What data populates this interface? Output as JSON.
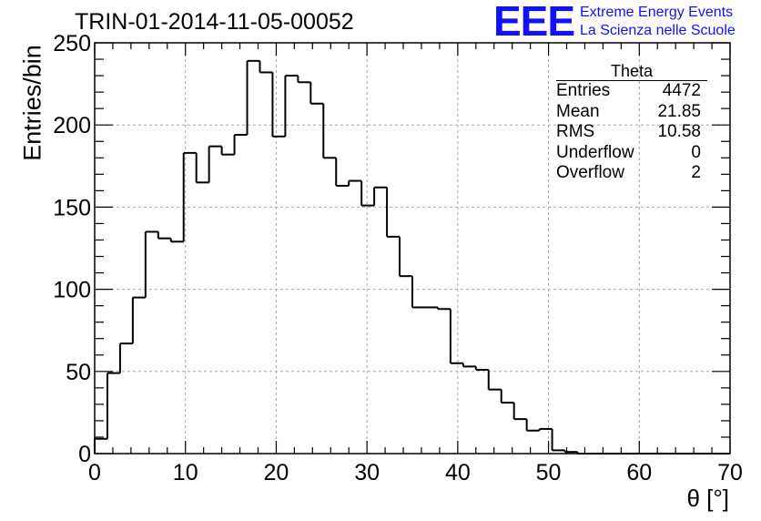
{
  "header": {
    "title": "TRIN-01-2014-11-05-00052",
    "logo_letters": "EEE",
    "logo_line1": "Extreme Energy Events",
    "logo_line2": "La Scienza nelle Scuole"
  },
  "stats": {
    "title": "Theta",
    "rows": [
      {
        "label": "Entries",
        "value": "4472"
      },
      {
        "label": "Mean",
        "value": "21.85"
      },
      {
        "label": "RMS",
        "value": "10.58"
      },
      {
        "label": "Underflow",
        "value": "0"
      },
      {
        "label": "Overflow",
        "value": "2"
      }
    ]
  },
  "colors": {
    "line": "#000000",
    "grid": "#a6a6a6",
    "logo": "#1010ff"
  },
  "chart_data": {
    "type": "histogram",
    "title": "TRIN-01-2014-11-05-00052",
    "xlabel": "θ [°]",
    "ylabel": "Entries/bin",
    "xlim": [
      0,
      70
    ],
    "ylim": [
      0,
      250
    ],
    "xticks": [
      0,
      10,
      20,
      30,
      40,
      50,
      60,
      70
    ],
    "yticks": [
      0,
      50,
      100,
      150,
      200,
      250
    ],
    "grid": true,
    "bin_width": 1.4,
    "bin_edges_start": 0,
    "values": [
      9,
      49,
      67,
      95,
      135,
      131,
      129,
      183,
      165,
      187,
      182,
      194,
      239,
      232,
      193,
      230,
      226,
      213,
      180,
      163,
      166,
      151,
      162,
      132,
      108,
      89,
      89,
      88,
      55,
      53,
      51,
      39,
      31,
      21,
      14,
      15,
      2,
      1,
      0,
      0,
      0,
      0,
      0,
      0,
      0,
      0,
      0,
      0,
      0,
      0
    ]
  }
}
